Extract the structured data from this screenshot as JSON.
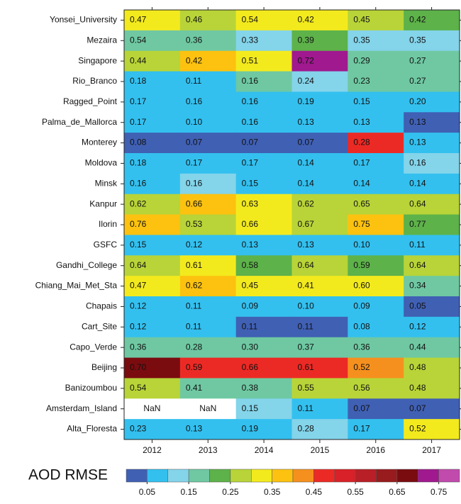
{
  "chart_data": {
    "type": "heatmap",
    "x": [
      "2012",
      "2013",
      "2014",
      "2015",
      "2016",
      "2017"
    ],
    "y": [
      "Yonsei_University",
      "Mezaira",
      "Singapore",
      "Rio_Branco",
      "Ragged_Point",
      "Palma_de_Mallorca",
      "Monterey",
      "Moldova",
      "Minsk",
      "Kanpur",
      "Ilorin",
      "GSFC",
      "Gandhi_College",
      "Chiang_Mai_Met_Sta",
      "Chapais",
      "Cart_Site",
      "Capo_Verde",
      "Beijing",
      "Banizoumbou",
      "Amsterdam_Island",
      "Alta_Floresta"
    ],
    "values": [
      [
        0.47,
        0.46,
        0.54,
        0.42,
        0.45,
        0.42
      ],
      [
        0.54,
        0.36,
        0.33,
        0.39,
        0.35,
        0.35
      ],
      [
        0.44,
        0.42,
        0.51,
        0.72,
        0.29,
        0.27
      ],
      [
        0.18,
        0.11,
        0.16,
        0.24,
        0.23,
        0.27
      ],
      [
        0.17,
        0.16,
        0.16,
        0.19,
        0.15,
        0.2
      ],
      [
        0.17,
        0.1,
        0.16,
        0.13,
        0.13,
        0.13
      ],
      [
        0.08,
        0.07,
        0.07,
        0.07,
        0.28,
        0.13
      ],
      [
        0.18,
        0.17,
        0.17,
        0.14,
        0.17,
        0.16
      ],
      [
        0.16,
        0.16,
        0.15,
        0.14,
        0.14,
        0.14
      ],
      [
        0.62,
        0.66,
        0.63,
        0.62,
        0.65,
        0.64
      ],
      [
        0.76,
        0.53,
        0.66,
        0.67,
        0.75,
        0.77
      ],
      [
        0.15,
        0.12,
        0.13,
        0.13,
        0.1,
        0.11
      ],
      [
        0.64,
        0.61,
        0.58,
        0.64,
        0.59,
        0.64
      ],
      [
        0.47,
        0.62,
        0.45,
        0.41,
        0.6,
        0.34
      ],
      [
        0.12,
        0.11,
        0.09,
        0.1,
        0.09,
        0.05
      ],
      [
        0.12,
        0.11,
        0.11,
        0.11,
        0.08,
        0.12
      ],
      [
        0.36,
        0.28,
        0.3,
        0.37,
        0.36,
        0.44
      ],
      [
        0.7,
        0.59,
        0.66,
        0.61,
        0.52,
        0.48
      ],
      [
        0.54,
        0.41,
        0.38,
        0.55,
        0.56,
        0.48
      ],
      [
        null,
        null,
        0.15,
        0.11,
        0.07,
        0.07
      ],
      [
        0.23,
        0.13,
        0.19,
        0.28,
        0.17,
        0.52
      ]
    ],
    "value_labels": [
      [
        "0.47",
        "0.46",
        "0.54",
        "0.42",
        "0.45",
        "0.42"
      ],
      [
        "0.54",
        "0.36",
        "0.33",
        "0.39",
        "0.35",
        "0.35"
      ],
      [
        "0.44",
        "0.42",
        "0.51",
        "0.72",
        "0.29",
        "0.27"
      ],
      [
        "0.18",
        "0.11",
        "0.16",
        "0.24",
        "0.23",
        "0.27"
      ],
      [
        "0.17",
        "0.16",
        "0.16",
        "0.19",
        "0.15",
        "0.20"
      ],
      [
        "0.17",
        "0.10",
        "0.16",
        "0.13",
        "0.13",
        "0.13"
      ],
      [
        "0.08",
        "0.07",
        "0.07",
        "0.07",
        "0.28",
        "0.13"
      ],
      [
        "0.18",
        "0.17",
        "0.17",
        "0.14",
        "0.17",
        "0.16"
      ],
      [
        "0.16",
        "0.16",
        "0.15",
        "0.14",
        "0.14",
        "0.14"
      ],
      [
        "0.62",
        "0.66",
        "0.63",
        "0.62",
        "0.65",
        "0.64"
      ],
      [
        "0.76",
        "0.53",
        "0.66",
        "0.67",
        "0.75",
        "0.77"
      ],
      [
        "0.15",
        "0.12",
        "0.13",
        "0.13",
        "0.10",
        "0.11"
      ],
      [
        "0.64",
        "0.61",
        "0.58",
        "0.64",
        "0.59",
        "0.64"
      ],
      [
        "0.47",
        "0.62",
        "0.45",
        "0.41",
        "0.60",
        "0.34"
      ],
      [
        "0.12",
        "0.11",
        "0.09",
        "0.10",
        "0.09",
        "0.05"
      ],
      [
        "0.12",
        "0.11",
        "0.11",
        "0.11",
        "0.08",
        "0.12"
      ],
      [
        "0.36",
        "0.28",
        "0.30",
        "0.37",
        "0.36",
        "0.44"
      ],
      [
        "0.70",
        "0.59",
        "0.66",
        "0.61",
        "0.52",
        "0.48"
      ],
      [
        "0.54",
        "0.41",
        "0.38",
        "0.55",
        "0.56",
        "0.48"
      ],
      [
        "NaN",
        "NaN",
        "0.15",
        "0.11",
        "0.07",
        "0.07"
      ],
      [
        "0.23",
        "0.13",
        "0.19",
        "0.28",
        "0.17",
        "0.52"
      ]
    ],
    "cell_colors": [
      [
        "#f3ea1e",
        "#b8d438",
        "#f3ea1e",
        "#f3ea1e",
        "#b8d438",
        "#5db24a"
      ],
      [
        "#6fc8a2",
        "#6fc8a2",
        "#84d4ea",
        "#5db24a",
        "#84d4ea",
        "#84d4ea"
      ],
      [
        "#b8d438",
        "#fcc20f",
        "#f3ea1e",
        "#a0198f",
        "#6fc8a2",
        "#6fc8a2"
      ],
      [
        "#33c0ef",
        "#33c0ef",
        "#6fc8a2",
        "#84d4ea",
        "#6fc8a2",
        "#6fc8a2"
      ],
      [
        "#33c0ef",
        "#33c0ef",
        "#33c0ef",
        "#33c0ef",
        "#33c0ef",
        "#33c0ef"
      ],
      [
        "#33c0ef",
        "#33c0ef",
        "#33c0ef",
        "#33c0ef",
        "#33c0ef",
        "#4060b4"
      ],
      [
        "#4060b4",
        "#4060b4",
        "#4060b4",
        "#4060b4",
        "#ec2a25",
        "#33c0ef"
      ],
      [
        "#33c0ef",
        "#33c0ef",
        "#33c0ef",
        "#33c0ef",
        "#33c0ef",
        "#84d4ea"
      ],
      [
        "#33c0ef",
        "#84d4ea",
        "#33c0ef",
        "#33c0ef",
        "#33c0ef",
        "#33c0ef"
      ],
      [
        "#b8d438",
        "#fcc20f",
        "#f3ea1e",
        "#b8d438",
        "#b8d438",
        "#b8d438"
      ],
      [
        "#fcc20f",
        "#b8d438",
        "#f3ea1e",
        "#b8d438",
        "#fcc20f",
        "#5db24a"
      ],
      [
        "#33c0ef",
        "#33c0ef",
        "#33c0ef",
        "#33c0ef",
        "#33c0ef",
        "#33c0ef"
      ],
      [
        "#b8d438",
        "#f3ea1e",
        "#5db24a",
        "#b8d438",
        "#5db24a",
        "#b8d438"
      ],
      [
        "#f3ea1e",
        "#fcc20f",
        "#f3ea1e",
        "#f3ea1e",
        "#f3ea1e",
        "#6fc8a2"
      ],
      [
        "#33c0ef",
        "#33c0ef",
        "#33c0ef",
        "#33c0ef",
        "#33c0ef",
        "#4060b4"
      ],
      [
        "#33c0ef",
        "#33c0ef",
        "#4060b4",
        "#4060b4",
        "#33c0ef",
        "#33c0ef"
      ],
      [
        "#6fc8a2",
        "#6fc8a2",
        "#6fc8a2",
        "#6fc8a2",
        "#6fc8a2",
        "#6fc8a2"
      ],
      [
        "#7a0c10",
        "#ec2a25",
        "#ec2a25",
        "#ec2a25",
        "#f5901e",
        "#b8d438"
      ],
      [
        "#b8d438",
        "#6fc8a2",
        "#6fc8a2",
        "#b8d438",
        "#b8d438",
        "#b8d438"
      ],
      [
        "#ffffff",
        "#ffffff",
        "#84d4ea",
        "#33c0ef",
        "#4060b4",
        "#4060b4"
      ],
      [
        "#33c0ef",
        "#33c0ef",
        "#33c0ef",
        "#84d4ea",
        "#33c0ef",
        "#f3ea1e"
      ]
    ],
    "colorbar": {
      "label": "AOD RMSE",
      "colors": [
        "#4060b4",
        "#33c0ef",
        "#84d4ea",
        "#6fc8a2",
        "#5db24a",
        "#b8d438",
        "#f3ea1e",
        "#fcc20f",
        "#f5901e",
        "#ec2a25",
        "#d82128",
        "#b81f26",
        "#981b1e",
        "#7a0c10",
        "#a0198f",
        "#c04bac"
      ],
      "lim": [
        0,
        0.8
      ],
      "ticks": [
        0.05,
        0.15,
        0.25,
        0.35,
        0.45,
        0.55,
        0.65,
        0.75
      ]
    }
  }
}
